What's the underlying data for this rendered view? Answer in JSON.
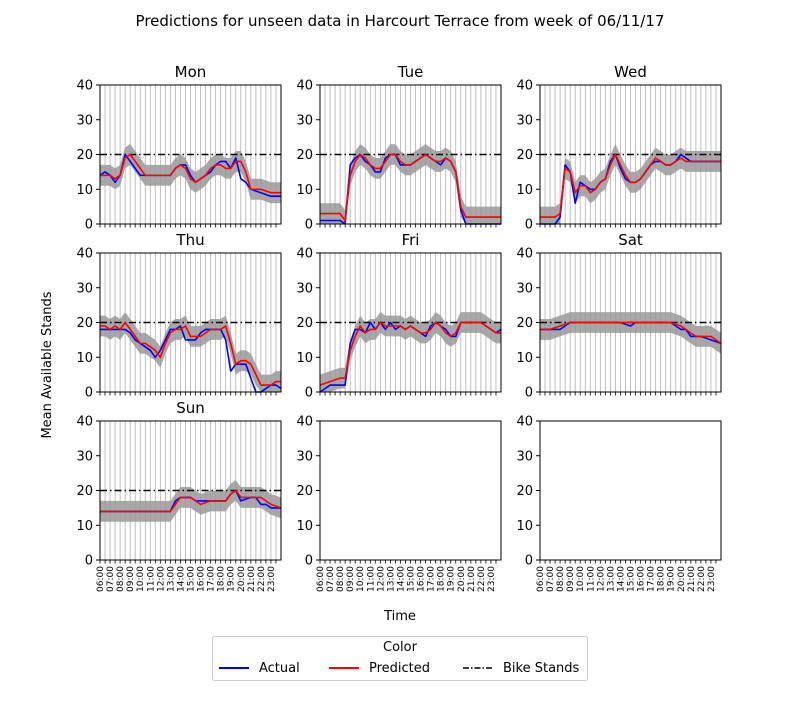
{
  "chart_data": {
    "type": "line",
    "title": "Predictions for unseen data in Harcourt Terrace from week of 06/11/17",
    "xlabel": "Time",
    "ylabel": "Mean Available Stands",
    "ylim": [
      0,
      40
    ],
    "yticks": [
      0,
      10,
      20,
      30,
      40
    ],
    "x_tick_labels": [
      "06:00",
      "07:00",
      "08:00",
      "09:00",
      "10:00",
      "11:00",
      "12:00",
      "13:00",
      "14:00",
      "15:00",
      "16:00",
      "17:00",
      "18:00",
      "19:00",
      "20:00",
      "21:00",
      "22:00",
      "23:00"
    ],
    "x_start_hour": 6,
    "x_end_hour": 24,
    "band_half_width": 3,
    "bike_stands": 20,
    "grid": "vertical",
    "colors": {
      "actual": "#0000ff",
      "predicted": "#ff0000",
      "band": "#999999",
      "bike_stands": "#000000"
    },
    "legend": {
      "title": "Color",
      "position": "bottom-center",
      "items": [
        {
          "label": "Actual",
          "style": "solid",
          "color": "#0000ff"
        },
        {
          "label": "Predicted",
          "style": "solid",
          "color": "#ff0000"
        },
        {
          "label": "Bike Stands",
          "style": "dashdot",
          "color": "#000000"
        }
      ]
    },
    "panels": [
      {
        "name": "Mon",
        "hours": [
          6.0,
          6.5,
          7,
          7.5,
          8,
          8.5,
          9,
          9.5,
          10,
          10.5,
          11,
          12,
          13,
          13.5,
          14,
          14.5,
          15,
          15.5,
          16,
          16.5,
          17,
          17.5,
          18,
          18.5,
          19,
          19.5,
          20,
          20.5,
          21,
          22,
          23,
          24
        ],
        "actual": [
          14,
          15,
          14,
          12,
          14,
          20,
          18,
          16,
          14,
          14,
          14,
          14,
          14,
          16,
          17,
          17,
          14,
          12,
          13,
          14,
          15,
          17,
          18,
          18,
          16,
          19,
          13,
          12,
          10,
          9,
          8,
          8
        ],
        "predicted": [
          14,
          14,
          14,
          13,
          14,
          19,
          20,
          18,
          16,
          14,
          14,
          14,
          14,
          16,
          17,
          16,
          13,
          12,
          13,
          14,
          16,
          17,
          17,
          16,
          16,
          18,
          18,
          15,
          10,
          10,
          9,
          9
        ]
      },
      {
        "name": "Tue",
        "hours": [
          6.0,
          7,
          8,
          8.5,
          9,
          9.5,
          10,
          10.5,
          11,
          11.5,
          12,
          12.5,
          13,
          13.5,
          14,
          14.5,
          15,
          15.5,
          16,
          16.5,
          17,
          17.5,
          18,
          18.5,
          19,
          19.5,
          20,
          20.5,
          21,
          22,
          23,
          24
        ],
        "actual": [
          1,
          1,
          1,
          0,
          17,
          19,
          20,
          18,
          17,
          15,
          15,
          19,
          20,
          20,
          17,
          17,
          17,
          18,
          19,
          20,
          19,
          18,
          17,
          19,
          18,
          15,
          4,
          0,
          0,
          0,
          0,
          0
        ],
        "predicted": [
          3,
          3,
          3,
          1,
          14,
          18,
          20,
          19,
          17,
          16,
          16,
          18,
          20,
          20,
          18,
          17,
          17,
          18,
          19,
          20,
          19,
          18,
          18,
          19,
          18,
          15,
          5,
          2,
          2,
          2,
          2,
          2
        ]
      },
      {
        "name": "Wed",
        "hours": [
          6.0,
          7,
          7.5,
          8,
          8.5,
          9,
          9.5,
          10,
          10.5,
          11,
          11.5,
          12,
          12.5,
          13,
          13.5,
          14,
          14.5,
          15,
          15.5,
          16,
          16.5,
          17,
          17.5,
          18,
          18.5,
          19,
          19.5,
          20,
          20.5,
          21,
          22,
          23,
          24
        ],
        "actual": [
          0,
          0,
          0,
          2,
          17,
          15,
          6,
          12,
          11,
          10,
          10,
          12,
          13,
          18,
          20,
          16,
          13,
          12,
          12,
          13,
          15,
          17,
          18,
          18,
          17,
          17,
          18,
          20,
          19,
          18,
          18,
          18,
          18
        ],
        "predicted": [
          2,
          2,
          2,
          3,
          16,
          15,
          9,
          11,
          11,
          9,
          10,
          12,
          13,
          17,
          20,
          17,
          14,
          12,
          12,
          13,
          15,
          17,
          19,
          18,
          17,
          17,
          18,
          19,
          18,
          18,
          18,
          18,
          18
        ]
      },
      {
        "name": "Thu",
        "hours": [
          6.0,
          6.5,
          7,
          7.5,
          8,
          8.5,
          9,
          9.5,
          10,
          10.5,
          11,
          11.5,
          12,
          12.5,
          13,
          13.5,
          14,
          14.5,
          15,
          15.5,
          16,
          16.5,
          17,
          17.5,
          18,
          18.5,
          19,
          19.5,
          20,
          20.5,
          21,
          21.5,
          22,
          22.5,
          23,
          23.5,
          24
        ],
        "actual": [
          18,
          18,
          18,
          18,
          18,
          18,
          17,
          15,
          14,
          13,
          12,
          10,
          12,
          15,
          18,
          18,
          19,
          15,
          15,
          15,
          17,
          18,
          18,
          18,
          18,
          15,
          6,
          8,
          8,
          8,
          4,
          0,
          0,
          1,
          2,
          2,
          1
        ],
        "predicted": [
          19,
          19,
          18,
          19,
          18,
          20,
          18,
          16,
          14,
          14,
          13,
          12,
          10,
          14,
          17,
          18,
          18,
          19,
          16,
          16,
          16,
          17,
          18,
          18,
          18,
          19,
          14,
          8,
          9,
          9,
          8,
          5,
          2,
          2,
          2,
          3,
          3
        ]
      },
      {
        "name": "Fri",
        "hours": [
          6.0,
          7,
          8,
          8.5,
          9,
          9.5,
          10,
          10.5,
          11,
          11.5,
          12,
          12.5,
          13,
          13.5,
          14,
          14.5,
          15,
          15.5,
          16,
          16.5,
          17,
          17.5,
          18,
          18.5,
          19,
          19.5,
          20,
          20.5,
          21,
          21.5,
          22,
          22.5,
          23,
          23.5,
          24
        ],
        "actual": [
          0,
          2,
          2,
          2,
          14,
          18,
          18,
          17,
          20,
          18,
          20,
          18,
          20,
          18,
          19,
          18,
          19,
          18,
          17,
          16,
          19,
          20,
          19,
          18,
          16,
          16,
          20,
          20,
          20,
          20,
          20,
          19,
          18,
          17,
          18
        ],
        "predicted": [
          2,
          3,
          4,
          4,
          12,
          16,
          19,
          17,
          18,
          18,
          20,
          19,
          19,
          19,
          19,
          18,
          19,
          18,
          17,
          17,
          18,
          20,
          19,
          17,
          16,
          17,
          20,
          20,
          20,
          20,
          20,
          19,
          18,
          17,
          17
        ]
      },
      {
        "name": "Sat",
        "hours": [
          6.0,
          7,
          8,
          9,
          10,
          12,
          14,
          15,
          15.5,
          16,
          18,
          19,
          20,
          20.5,
          21,
          21.5,
          22,
          23,
          24
        ],
        "actual": [
          18,
          18,
          18,
          20,
          20,
          20,
          20,
          19,
          20,
          20,
          20,
          20,
          18,
          18,
          16,
          16,
          16,
          15,
          14
        ],
        "predicted": [
          18,
          18,
          19,
          20,
          20,
          20,
          20,
          20,
          20,
          20,
          20,
          20,
          19,
          18,
          17,
          16,
          16,
          16,
          14
        ]
      },
      {
        "name": "Sun",
        "hours": [
          6.0,
          7,
          8,
          9,
          10,
          11,
          12,
          12.5,
          13,
          13.5,
          14,
          15,
          15.5,
          16,
          17,
          18,
          18.5,
          19,
          19.5,
          20,
          21,
          21.5,
          22,
          22.5,
          23,
          24
        ],
        "actual": [
          14,
          14,
          14,
          14,
          14,
          14,
          14,
          14,
          14,
          17,
          18,
          18,
          17,
          17,
          17,
          17,
          17,
          19,
          20,
          17,
          18,
          18,
          16,
          16,
          15,
          15
        ],
        "predicted": [
          14,
          14,
          14,
          14,
          14,
          14,
          14,
          14,
          14,
          16,
          18,
          18,
          17,
          16,
          17,
          17,
          17,
          19,
          20,
          18,
          18,
          18,
          18,
          17,
          16,
          15
        ]
      },
      {
        "name": "",
        "hours": [],
        "actual": [],
        "predicted": []
      },
      {
        "name": "",
        "hours": [],
        "actual": [],
        "predicted": []
      }
    ]
  }
}
